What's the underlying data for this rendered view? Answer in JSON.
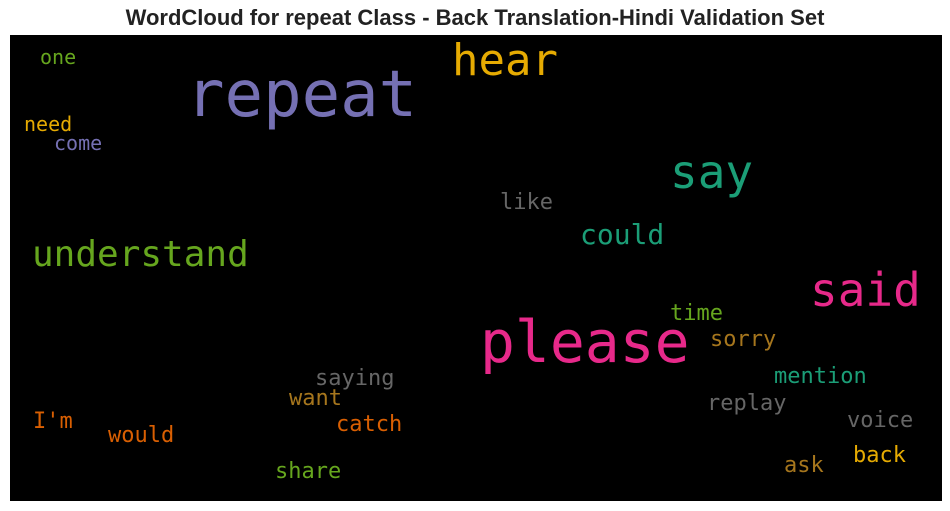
{
  "title": "WordCloud for repeat Class - Back Translation-Hindi Validation Set",
  "words": [
    {
      "text": "repeat",
      "color": "#7570b3"
    },
    {
      "text": "hear",
      "color": "#e6ab02"
    },
    {
      "text": "say",
      "color": "#1b9e77"
    },
    {
      "text": "please",
      "color": "#e7298a"
    },
    {
      "text": "said",
      "color": "#e7298a"
    },
    {
      "text": "understand",
      "color": "#66a61e"
    },
    {
      "text": "could",
      "color": "#1b9e77"
    },
    {
      "text": "like",
      "color": "#666666"
    },
    {
      "text": "one",
      "color": "#66a61e"
    },
    {
      "text": "need",
      "color": "#e6ab02"
    },
    {
      "text": "come",
      "color": "#7570b3"
    },
    {
      "text": "time",
      "color": "#66a61e"
    },
    {
      "text": "sorry",
      "color": "#a6761d"
    },
    {
      "text": "mention",
      "color": "#1b9e77"
    },
    {
      "text": "saying",
      "color": "#666666"
    },
    {
      "text": "want",
      "color": "#a6761d"
    },
    {
      "text": "replay",
      "color": "#666666"
    },
    {
      "text": "voice",
      "color": "#666666"
    },
    {
      "text": "I'm",
      "color": "#d95f02"
    },
    {
      "text": "would",
      "color": "#d95f02"
    },
    {
      "text": "catch",
      "color": "#d95f02"
    },
    {
      "text": "back",
      "color": "#e6ab02"
    },
    {
      "text": "ask",
      "color": "#a6761d"
    },
    {
      "text": "share",
      "color": "#66a61e"
    }
  ]
}
